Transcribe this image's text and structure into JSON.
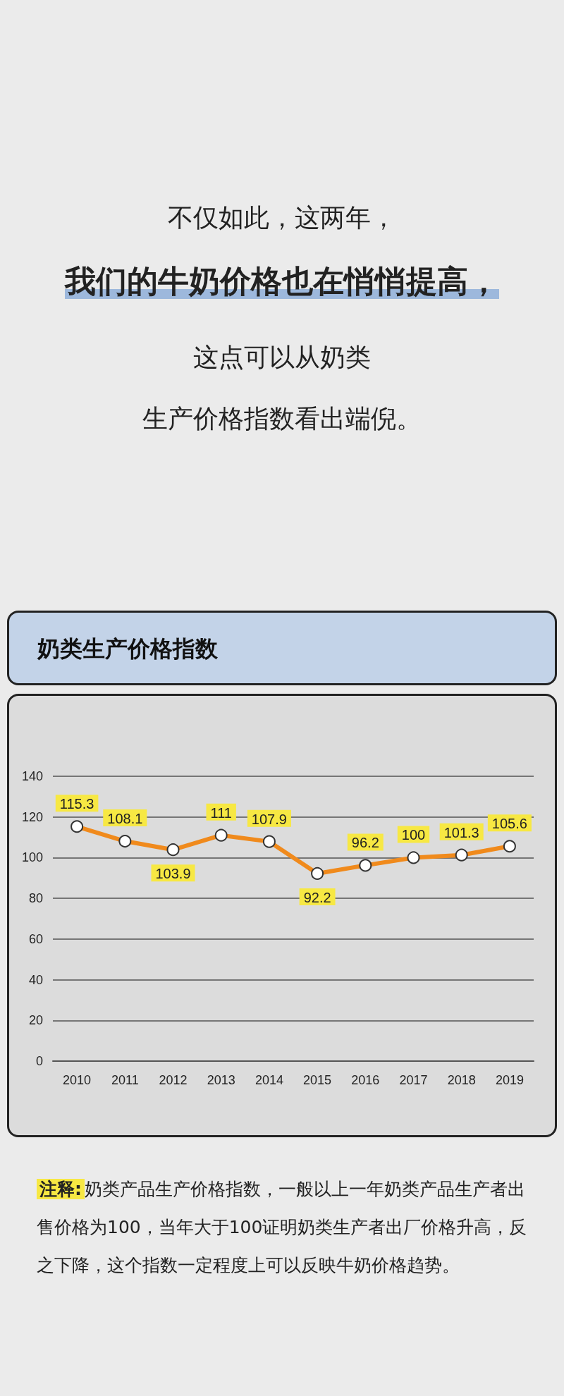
{
  "chart_data": {
    "type": "line",
    "title": "奶类生产价格指数",
    "annotations": [
      "不仅如此，这两年，",
      "我们的牛奶价格也在悄悄提高，",
      "这点可以从奶类",
      "生产价格指数看出端倪。",
      "注释:",
      "奶类产品生产价格指数，一般以上一年奶类产品生产者出售价格为100，当年大于100证明奶类生产者出厂价格升高，反之下降，这个指数一定程度上可以反映牛奶价格趋势。"
    ],
    "categories": [
      "2010",
      "2011",
      "2012",
      "2013",
      "2014",
      "2015",
      "2016",
      "2017",
      "2018",
      "2019"
    ],
    "series": [
      {
        "color": "#f08a1c",
        "values": [
          115.3,
          108.1,
          103.9,
          111,
          107.9,
          92.2,
          96.2,
          100,
          101.3,
          105.6
        ]
      }
    ],
    "ylim": [
      0,
      140
    ],
    "yticks": [
      0,
      20,
      40,
      60,
      80,
      100,
      120,
      140
    ],
    "grid": "y",
    "marker": "circle",
    "line_style": "solid",
    "data_labels": true
  }
}
